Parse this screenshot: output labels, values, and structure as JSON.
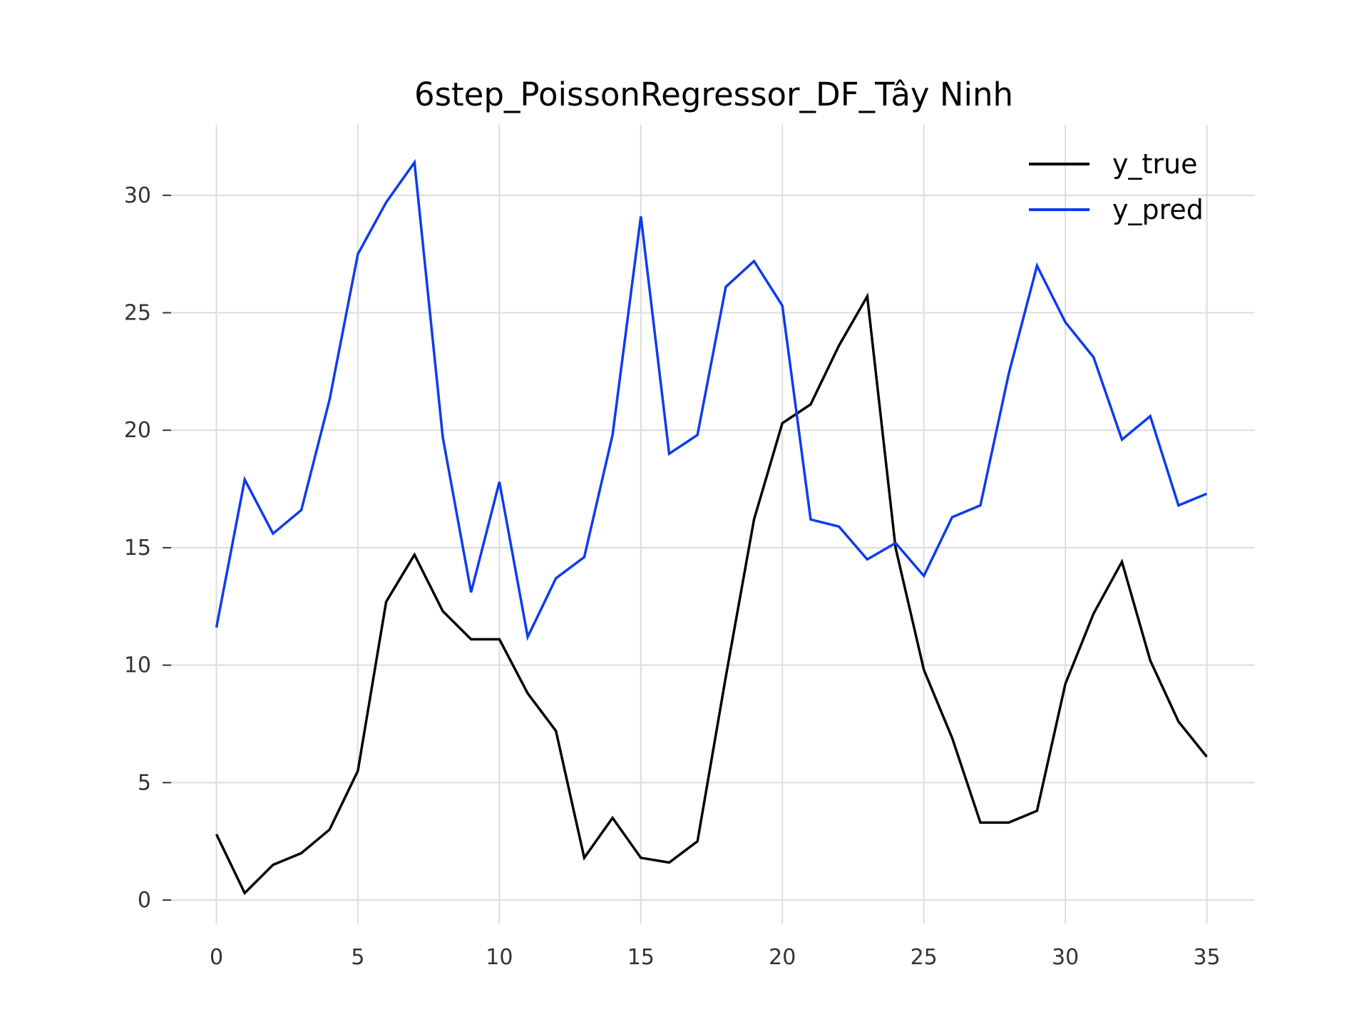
{
  "chart_data": {
    "type": "line",
    "title": "6step_PoissonRegressor_DF_Tây Ninh",
    "xlabel": "",
    "ylabel": "",
    "xlim": [
      -1.6,
      36.7
    ],
    "ylim": [
      -1.0,
      33.0
    ],
    "xticks": [
      0,
      5,
      10,
      15,
      20,
      25,
      30,
      35
    ],
    "yticks": [
      0,
      5,
      10,
      15,
      20,
      25,
      30
    ],
    "grid": true,
    "legend_position": "top-right",
    "x": [
      0,
      1,
      2,
      3,
      4,
      5,
      6,
      7,
      8,
      9,
      10,
      11,
      12,
      13,
      14,
      15,
      16,
      17,
      18,
      19,
      20,
      21,
      22,
      23,
      24,
      25,
      26,
      27,
      28,
      29,
      30,
      31,
      32,
      33,
      34,
      35
    ],
    "series": [
      {
        "name": "y_true",
        "color": "#000000",
        "values": [
          2.8,
          0.3,
          1.5,
          2.0,
          3.0,
          5.5,
          12.7,
          14.7,
          12.3,
          11.1,
          11.1,
          8.8,
          7.2,
          1.8,
          3.5,
          1.8,
          1.6,
          2.5,
          9.5,
          16.2,
          20.3,
          21.1,
          23.6,
          25.7,
          15.0,
          9.8,
          6.9,
          3.3,
          3.3,
          3.8,
          9.2,
          12.2,
          14.4,
          10.2,
          7.6,
          6.1
        ]
      },
      {
        "name": "y_pred",
        "color": "#0a3cf0",
        "values": [
          11.6,
          17.9,
          15.6,
          16.6,
          21.3,
          27.5,
          29.7,
          31.4,
          19.7,
          13.1,
          17.8,
          11.2,
          13.7,
          14.6,
          19.8,
          29.1,
          19.0,
          19.8,
          26.1,
          27.2,
          25.3,
          16.2,
          15.9,
          14.5,
          15.2,
          13.8,
          16.3,
          16.8,
          22.4,
          27.0,
          24.6,
          23.1,
          19.6,
          20.6,
          16.8,
          17.3
        ]
      }
    ]
  }
}
